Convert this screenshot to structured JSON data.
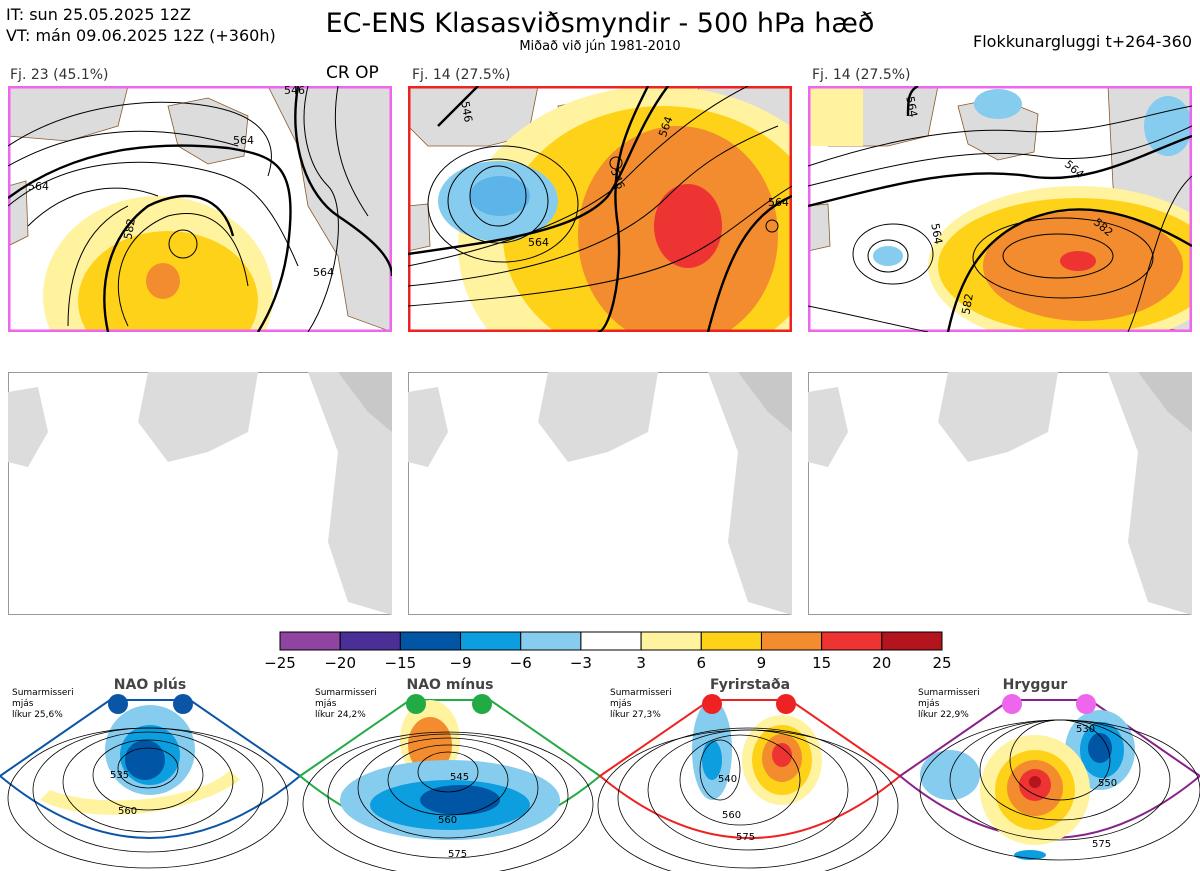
{
  "header": {
    "init_time": "IT: sun 25.05.2025 12Z",
    "valid_time": "VT: mán 09.06.2025 12Z  (+360h)",
    "title": "EC-ENS Klasasviðsmyndir - 500 hPa hæð",
    "subtitle": "Miðað við jún 1981-2010",
    "window": "Flokkunargluggi t+264-360"
  },
  "clusters": [
    {
      "label": "Fj. 23 (45.1%)",
      "tag": "CR OP",
      "members": 23,
      "percent": 45.1,
      "border_color": "#ee66ee",
      "contours": [
        "564",
        "582",
        "564",
        "564",
        "546"
      ]
    },
    {
      "label": "Fj. 14 (27.5%)",
      "tag": "",
      "members": 14,
      "percent": 27.5,
      "border_color": "#ee2222",
      "contours": [
        "546",
        "564",
        "546",
        "564",
        "564"
      ]
    },
    {
      "label": "Fj. 14 (27.5%)",
      "tag": "",
      "members": 14,
      "percent": 27.5,
      "border_color": "#ee66ee",
      "contours": [
        "564",
        "564",
        "582",
        "582",
        "564"
      ]
    }
  ],
  "colors": {
    "land": "#dcdcdc",
    "coast": "#8b5a2b",
    "contour": "#000000"
  },
  "chart_data": {
    "type": "heatmap",
    "title": "EC-ENS Klasasviðsmyndir - 500 hPa hæð",
    "colorbar": {
      "ticks": [
        "−25",
        "−20",
        "−15",
        "−9",
        "−6",
        "−3",
        "3",
        "6",
        "9",
        "15",
        "20",
        "25"
      ],
      "bounds": [
        -25,
        -20,
        -15,
        -9,
        -6,
        -3,
        3,
        6,
        9,
        15,
        20,
        25
      ],
      "colors": [
        "#8e44a0",
        "#4a2f96",
        "#0055a5",
        "#0d9ee0",
        "#86ccef",
        "#ffffff",
        "#fff3a0",
        "#ffd21a",
        "#f28c2e",
        "#ee3333",
        "#b4141d"
      ]
    }
  },
  "regimes": [
    {
      "name": "NAO plús",
      "season": "Sumarmisseri",
      "anomaly": "mjás",
      "prob": "líkur 25,6%",
      "color": "#0a55a5",
      "contours": [
        "535",
        "560"
      ]
    },
    {
      "name": "NAO mínus",
      "season": "Sumarmisseri",
      "anomaly": "mjás",
      "prob": "líkur 24,2%",
      "color": "#22aa44",
      "contours": [
        "545",
        "560",
        "575"
      ]
    },
    {
      "name": "Fyrirstaða",
      "season": "Sumarmisseri",
      "anomaly": "mjás",
      "prob": "líkur 27,3%",
      "color": "#ee2222",
      "contours": [
        "540",
        "560",
        "575"
      ]
    },
    {
      "name": "Hryggur",
      "season": "Sumarmisseri",
      "anomaly": "mjás",
      "prob": "líkur 22,9%",
      "color": "#ee66ee",
      "frame": "#882288",
      "contours": [
        "530",
        "550",
        "575"
      ]
    }
  ]
}
